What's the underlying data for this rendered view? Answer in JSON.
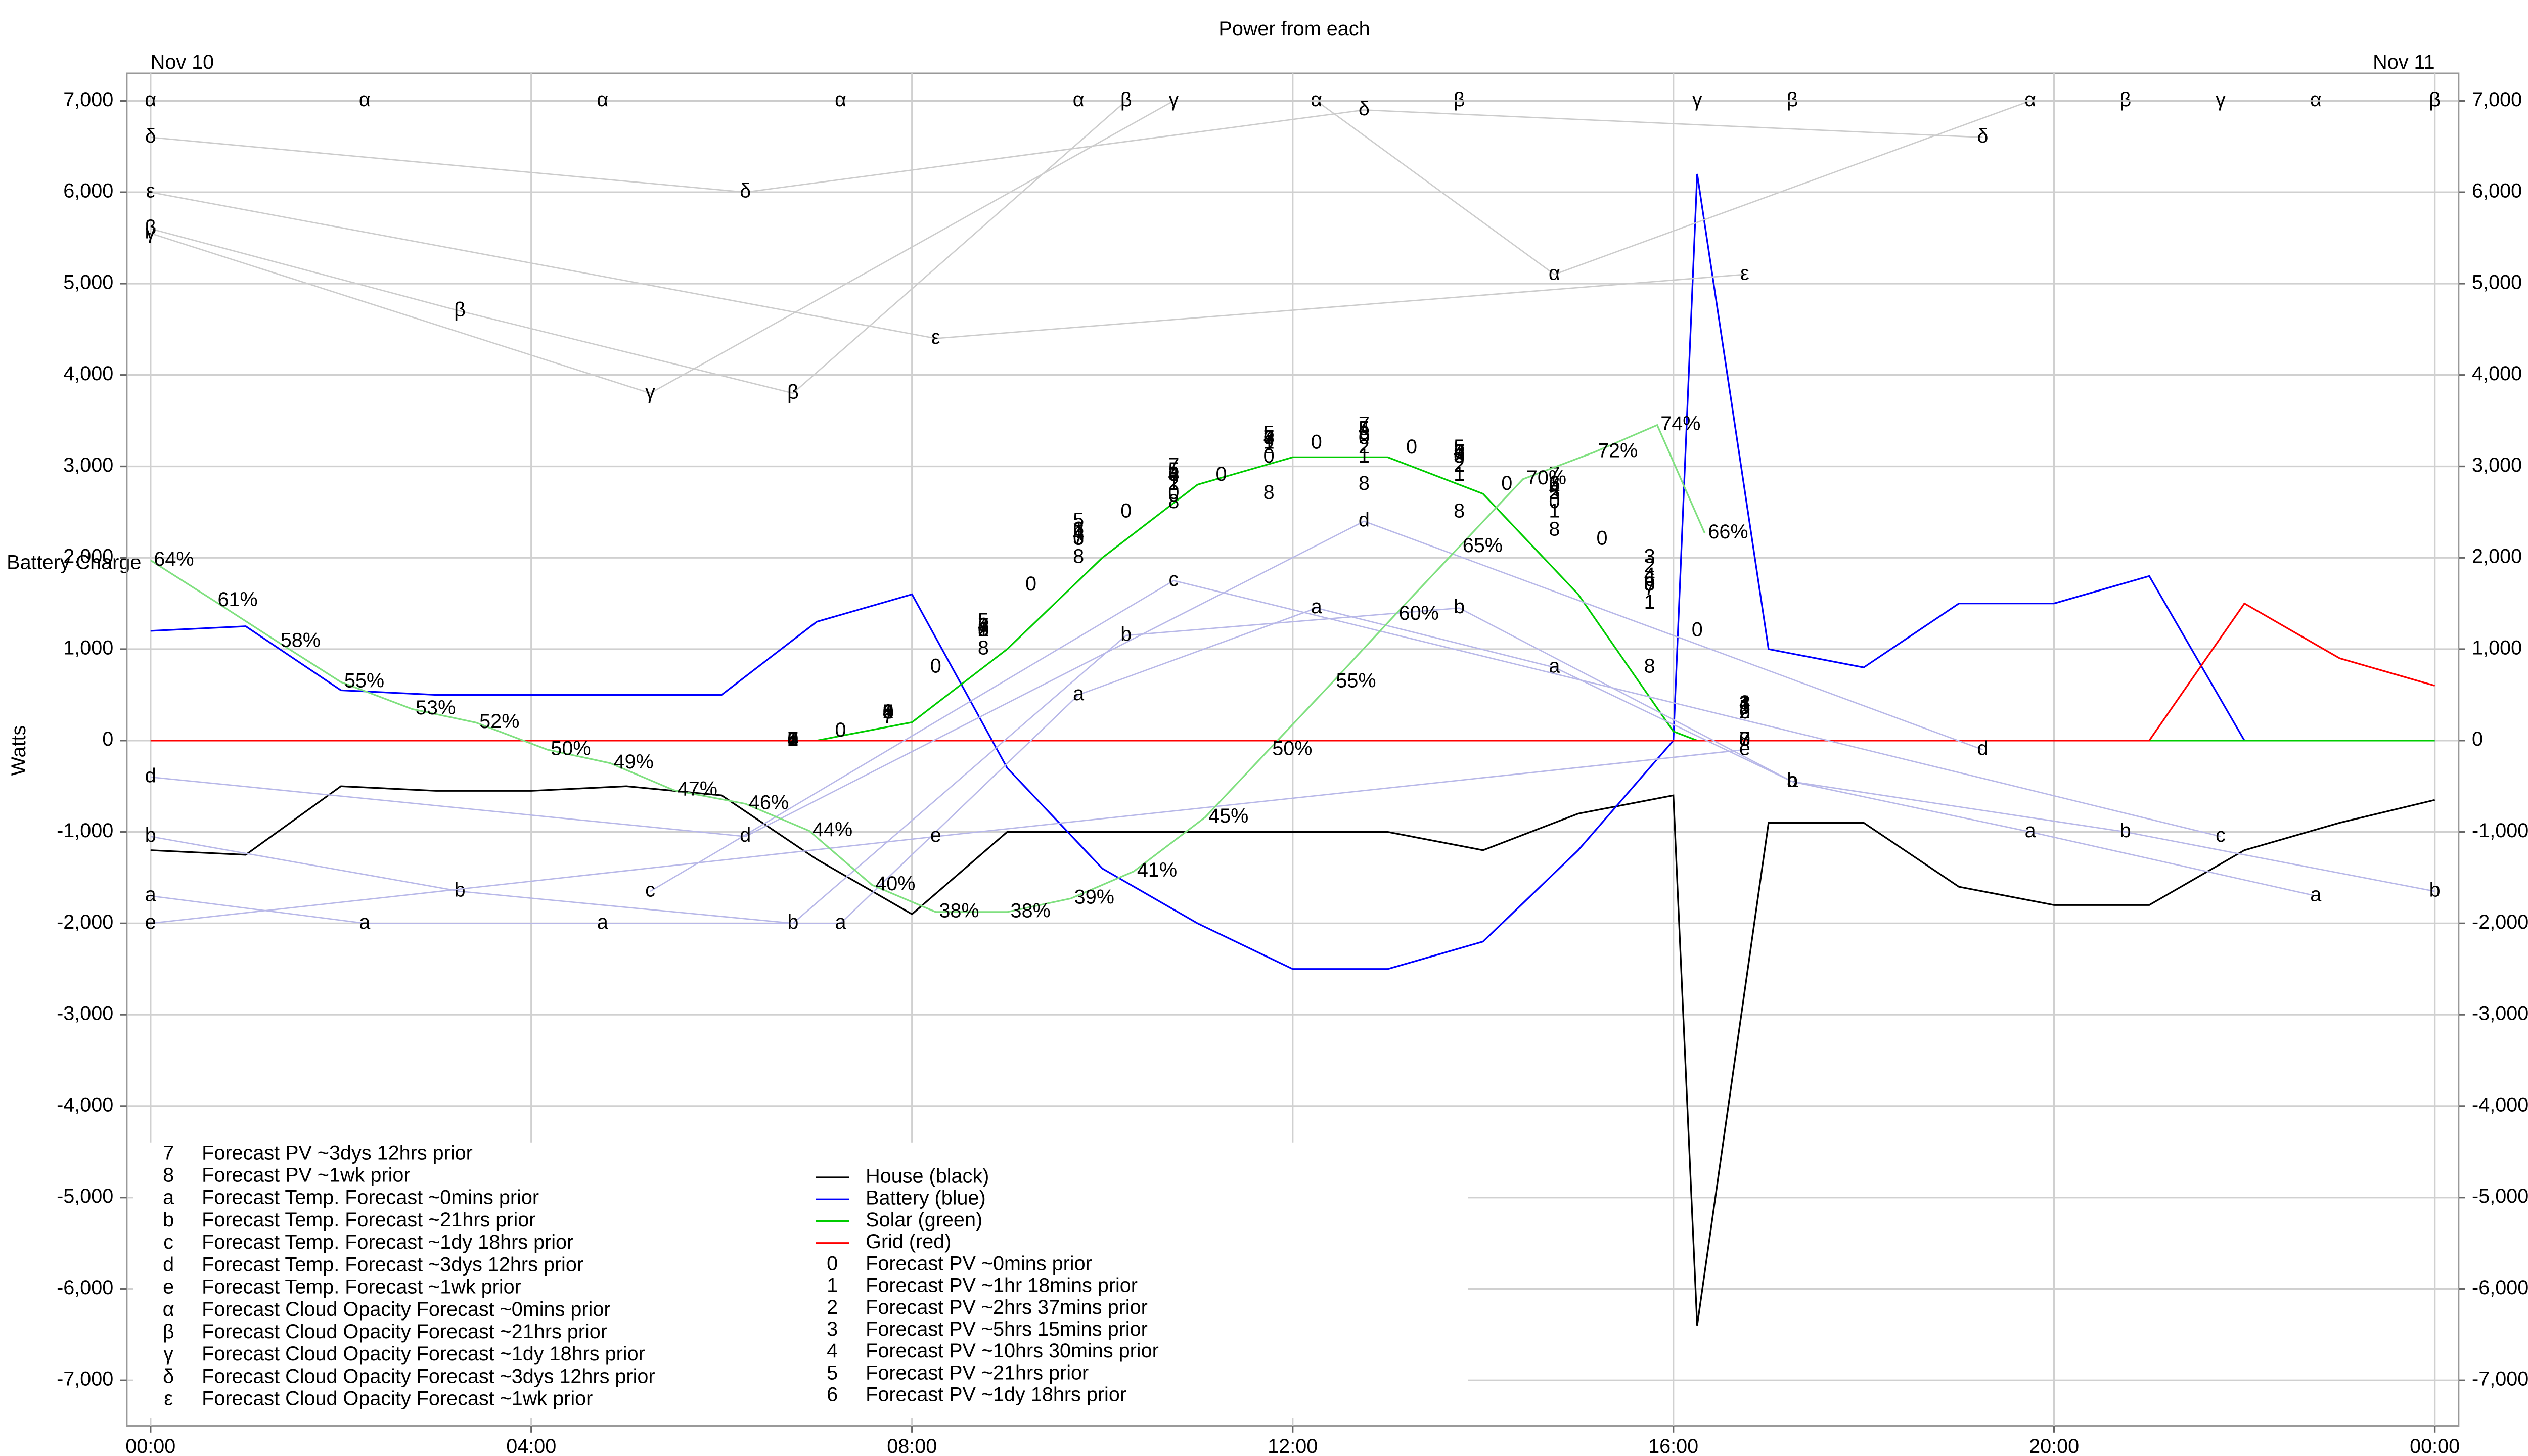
{
  "chart_data": {
    "type": "line",
    "title": "Power from each",
    "ylabel": "Watts",
    "date_labels": [
      {
        "x": 0,
        "label": "Nov 10"
      },
      {
        "x": 24,
        "label": "Nov 11"
      }
    ],
    "xlim": [
      -0.25,
      24.25
    ],
    "xticks": [
      {
        "value": 0,
        "label": "00:00"
      },
      {
        "value": 4,
        "label": "04:00"
      },
      {
        "value": 8,
        "label": "08:00"
      },
      {
        "value": 12,
        "label": "12:00"
      },
      {
        "value": 16,
        "label": "16:00"
      },
      {
        "value": 20,
        "label": "20:00"
      },
      {
        "value": 24,
        "label": "00:00"
      }
    ],
    "ylim": [
      -7500,
      7300
    ],
    "yticks": [
      {
        "value": -7000,
        "label": "-7,000"
      },
      {
        "value": -6000,
        "label": "-6,000"
      },
      {
        "value": -5000,
        "label": "-5,000"
      },
      {
        "value": -4000,
        "label": "-4,000"
      },
      {
        "value": -3000,
        "label": "-3,000"
      },
      {
        "value": -2000,
        "label": "-2,000"
      },
      {
        "value": -1000,
        "label": "-1,000"
      },
      0,
      {
        "value": 1000,
        "label": "1,000"
      },
      {
        "value": 2000,
        "label": "2,000"
      },
      {
        "value": 3000,
        "label": "3,000"
      },
      {
        "value": 4000,
        "label": "4,000"
      },
      {
        "value": 5000,
        "label": "5,000"
      },
      {
        "value": 6000,
        "label": "6,000"
      },
      {
        "value": 7000,
        "label": "7,000"
      }
    ],
    "y2lim": [
      0,
      100
    ],
    "grid": true,
    "x": [
      0,
      1,
      2,
      3,
      4,
      5,
      6,
      7,
      8,
      9,
      10,
      11,
      12,
      13,
      14,
      15,
      16,
      16.25,
      17,
      18,
      19,
      20,
      21,
      22,
      23,
      24
    ],
    "series": [
      {
        "name": "House (black)",
        "color": "#000000",
        "values": [
          -1200,
          -1250,
          -500,
          -550,
          -550,
          -500,
          -600,
          -1300,
          -1900,
          -1000,
          -1000,
          -1000,
          -1000,
          -1000,
          -1200,
          -800,
          -600,
          -6400,
          -900,
          -900,
          -1600,
          -1800,
          -1800,
          -1200,
          -900,
          -650
        ]
      },
      {
        "name": "Battery (blue)",
        "color": "#0000ff",
        "values": [
          1200,
          1250,
          550,
          500,
          500,
          500,
          500,
          1300,
          1600,
          -300,
          -1400,
          -2000,
          -2500,
          -2500,
          -2200,
          -1200,
          0,
          6200,
          1000,
          800,
          1500,
          1500,
          1800,
          0,
          0,
          0
        ]
      },
      {
        "name": "Solar (green)",
        "color": "#00cc00",
        "values": [
          0,
          0,
          0,
          0,
          0,
          0,
          0,
          0,
          200,
          1000,
          2000,
          2800,
          3100,
          3100,
          2700,
          1600,
          100,
          0,
          0,
          0,
          0,
          0,
          0,
          0,
          0,
          0
        ]
      },
      {
        "name": "Grid (red)",
        "color": "#ff0000",
        "values": [
          0,
          0,
          0,
          0,
          0,
          0,
          0,
          0,
          0,
          0,
          0,
          0,
          0,
          0,
          0,
          0,
          0,
          0,
          0,
          0,
          0,
          0,
          0,
          1500,
          900,
          600
        ]
      },
      {
        "name": "Forecast PV ~0mins prior",
        "marker": "0",
        "x": [
          6.75,
          7.25,
          7.75,
          8.25,
          8.75,
          9.25,
          9.75,
          10.25,
          10.75,
          11.25,
          11.75,
          12.25,
          12.75,
          13.25,
          13.75,
          14.25,
          14.75,
          15.25,
          15.75,
          16.25,
          16.75
        ],
        "values": [
          0,
          100,
          300,
          800,
          1200,
          1700,
          2200,
          2500,
          2700,
          2900,
          3100,
          3250,
          3300,
          3200,
          3100,
          2800,
          2600,
          2200,
          1700,
          1200,
          0
        ]
      },
      {
        "name": "Forecast PV ~1hr 18mins prior",
        "marker": "1",
        "x": [
          6.75,
          7.75,
          8.75,
          9.75,
          10.75,
          11.75,
          12.75,
          13.75,
          14.75,
          15.75,
          16.75
        ],
        "values": [
          0,
          300,
          1200,
          2300,
          2800,
          3250,
          3100,
          2900,
          2500,
          1500,
          400
        ]
      },
      {
        "name": "Forecast PV ~2hrs 37mins prior",
        "marker": "2",
        "x": [
          6.75,
          7.75,
          8.75,
          9.75,
          10.75,
          11.75,
          12.75,
          13.75,
          14.75,
          15.75,
          16.75
        ],
        "values": [
          0,
          300,
          1200,
          2300,
          2800,
          3200,
          3200,
          3000,
          2700,
          1900,
          300
        ]
      },
      {
        "name": "Forecast PV ~5hrs 15mins prior",
        "marker": "3",
        "x": [
          6.75,
          7.75,
          8.75,
          9.75,
          10.75,
          11.75,
          12.75,
          13.75,
          14.75,
          15.75,
          16.75
        ],
        "values": [
          0,
          300,
          1200,
          2200,
          2900,
          3300,
          3350,
          3100,
          2800,
          2000,
          400
        ]
      },
      {
        "name": "Forecast PV ~10hrs 30mins prior",
        "marker": "4",
        "x": [
          6.75,
          7.75,
          8.75,
          9.75,
          10.75,
          11.75,
          12.75,
          13.75,
          14.75,
          15.75,
          16.75
        ],
        "values": [
          0,
          300,
          1250,
          2250,
          2900,
          3300,
          3400,
          3150,
          2750,
          1800,
          400
        ]
      },
      {
        "name": "Forecast PV ~21hrs prior",
        "marker": "5",
        "x": [
          6.75,
          7.75,
          8.75,
          9.75,
          10.75,
          11.75,
          12.75,
          13.75,
          14.75,
          15.75,
          16.75
        ],
        "values": [
          0,
          300,
          1300,
          2400,
          2950,
          3350,
          3400,
          3200,
          2700,
          1700,
          350
        ]
      },
      {
        "name": "Forecast PV ~1dy 18hrs prior",
        "marker": "6",
        "x": [
          6.75,
          7.75,
          8.75,
          9.75,
          10.75,
          11.75,
          12.75,
          13.75,
          14.75,
          15.75,
          16.75
        ],
        "values": [
          0,
          300,
          1250,
          2300,
          2900,
          3300,
          3350,
          3150,
          2800,
          1750,
          300
        ]
      },
      {
        "name": "Forecast PV ~3dys 12hrs prior",
        "marker": "7",
        "x": [
          6.75,
          7.75,
          8.75,
          9.75,
          10.75,
          11.75,
          12.75,
          13.75,
          14.75,
          15.75,
          16.75
        ],
        "values": [
          0,
          250,
          1250,
          2200,
          3000,
          3300,
          3450,
          3150,
          2900,
          1650,
          0
        ]
      },
      {
        "name": "Forecast PV ~1wk prior",
        "marker": "8",
        "x": [
          6.75,
          7.75,
          8.75,
          9.75,
          10.75,
          11.75,
          12.75,
          13.75,
          14.75,
          15.75,
          16.75
        ],
        "values": [
          0,
          300,
          1000,
          2000,
          2600,
          2700,
          2800,
          2500,
          2300,
          800,
          0
        ]
      },
      {
        "name": "Forecast Temp. Forecast ~0mins prior",
        "marker": "a",
        "color": "#b8b8e8",
        "x": [
          0,
          2.25,
          4.75,
          7.25,
          9.75,
          12.25,
          14.75,
          17.25,
          19.75,
          22.75
        ],
        "values": [
          -1700,
          -2000,
          -2000,
          -2000,
          500,
          1450,
          800,
          -450,
          -1000,
          -1700
        ]
      },
      {
        "name": "Forecast Temp. Forecast ~21hrs prior",
        "marker": "b",
        "color": "#b8b8e8",
        "x": [
          0,
          3.25,
          6.75,
          10.25,
          13.75,
          17.25,
          20.75,
          24
        ],
        "values": [
          -1050,
          -1650,
          -2000,
          1150,
          1450,
          -450,
          -1000,
          -1650
        ]
      },
      {
        "name": "Forecast Temp. Forecast ~1dy 18hrs prior",
        "marker": "c",
        "color": "#b8b8e8",
        "x": [
          5.25,
          10.75,
          21.75
        ],
        "values": [
          -1650,
          1750,
          -1050
        ]
      },
      {
        "name": "Forecast Temp. Forecast ~3dys 12hrs prior",
        "marker": "d",
        "color": "#b8b8e8",
        "x": [
          0,
          6.25,
          12.75,
          19.25
        ],
        "values": [
          -400,
          -1050,
          2400,
          -100
        ]
      },
      {
        "name": "Forecast Temp. Forecast ~1wk prior",
        "marker": "e",
        "color": "#b8b8e8",
        "x": [
          0,
          8.25,
          16.75
        ],
        "values": [
          -2000,
          -1050,
          -100
        ]
      },
      {
        "name": "Forecast Cloud Opacity Forecast ~0mins prior",
        "marker": "α",
        "color": "#cccccc",
        "x": [
          0,
          2.25,
          4.75,
          7.25,
          9.75,
          12.25,
          14.75,
          19.75,
          22.75
        ],
        "values": [
          7000,
          7000,
          7000,
          7000,
          7000,
          7000,
          5100,
          7000,
          7000
        ]
      },
      {
        "name": "Forecast Cloud Opacity Forecast ~21hrs prior",
        "marker": "β",
        "color": "#cccccc",
        "x": [
          0,
          3.25,
          6.75,
          10.25,
          13.75,
          17.25,
          20.75,
          24
        ],
        "values": [
          5600,
          4700,
          3800,
          7000,
          7000,
          7000,
          7000,
          7000
        ]
      },
      {
        "name": "Forecast Cloud Opacity Forecast ~1dy 18hrs prior",
        "marker": "γ",
        "color": "#cccccc",
        "x": [
          0,
          5.25,
          10.75,
          16.25,
          21.75
        ],
        "values": [
          5550,
          3800,
          7000,
          7000,
          7000
        ]
      },
      {
        "name": "Forecast Cloud Opacity Forecast ~3dys 12hrs prior",
        "marker": "δ",
        "color": "#cccccc",
        "x": [
          0,
          6.25,
          12.75,
          19.25
        ],
        "values": [
          6600,
          6000,
          6900,
          6600
        ]
      },
      {
        "name": "Forecast Cloud Opacity Forecast ~1wk prior",
        "marker": "ε",
        "color": "#cccccc",
        "x": [
          0,
          8.25,
          16.75
        ],
        "values": [
          6000,
          4400,
          5100
        ]
      },
      {
        "name": "Battery Charge",
        "axis": "y2",
        "color": "#80e080",
        "label_color": "#7a4a10",
        "x": [
          0,
          0.67,
          1.33,
          2,
          2.75,
          3.42,
          4.17,
          4.83,
          5.5,
          6.25,
          6.92,
          7.58,
          8.25,
          9,
          9.67,
          10.33,
          11.08,
          11.75,
          12.42,
          13.08,
          13.75,
          14.42,
          15.17,
          15.83,
          16.33
        ],
        "values": [
          64,
          61,
          58,
          55,
          53,
          52,
          50,
          49,
          47,
          46,
          44,
          40,
          38,
          38,
          39,
          41,
          45,
          50,
          55,
          60,
          65,
          70,
          72,
          74,
          66
        ],
        "value_labels": [
          "64%",
          "61%",
          "58%",
          "55%",
          "53%",
          "52%",
          "50%",
          "49%",
          "47%",
          "46%",
          "44%",
          "40%",
          "38%",
          "38%",
          "39%",
          "41%",
          "45%",
          "50%",
          "55%",
          "60%",
          "65%",
          "70%",
          "72%",
          "74%",
          "66%"
        ]
      }
    ]
  }
}
